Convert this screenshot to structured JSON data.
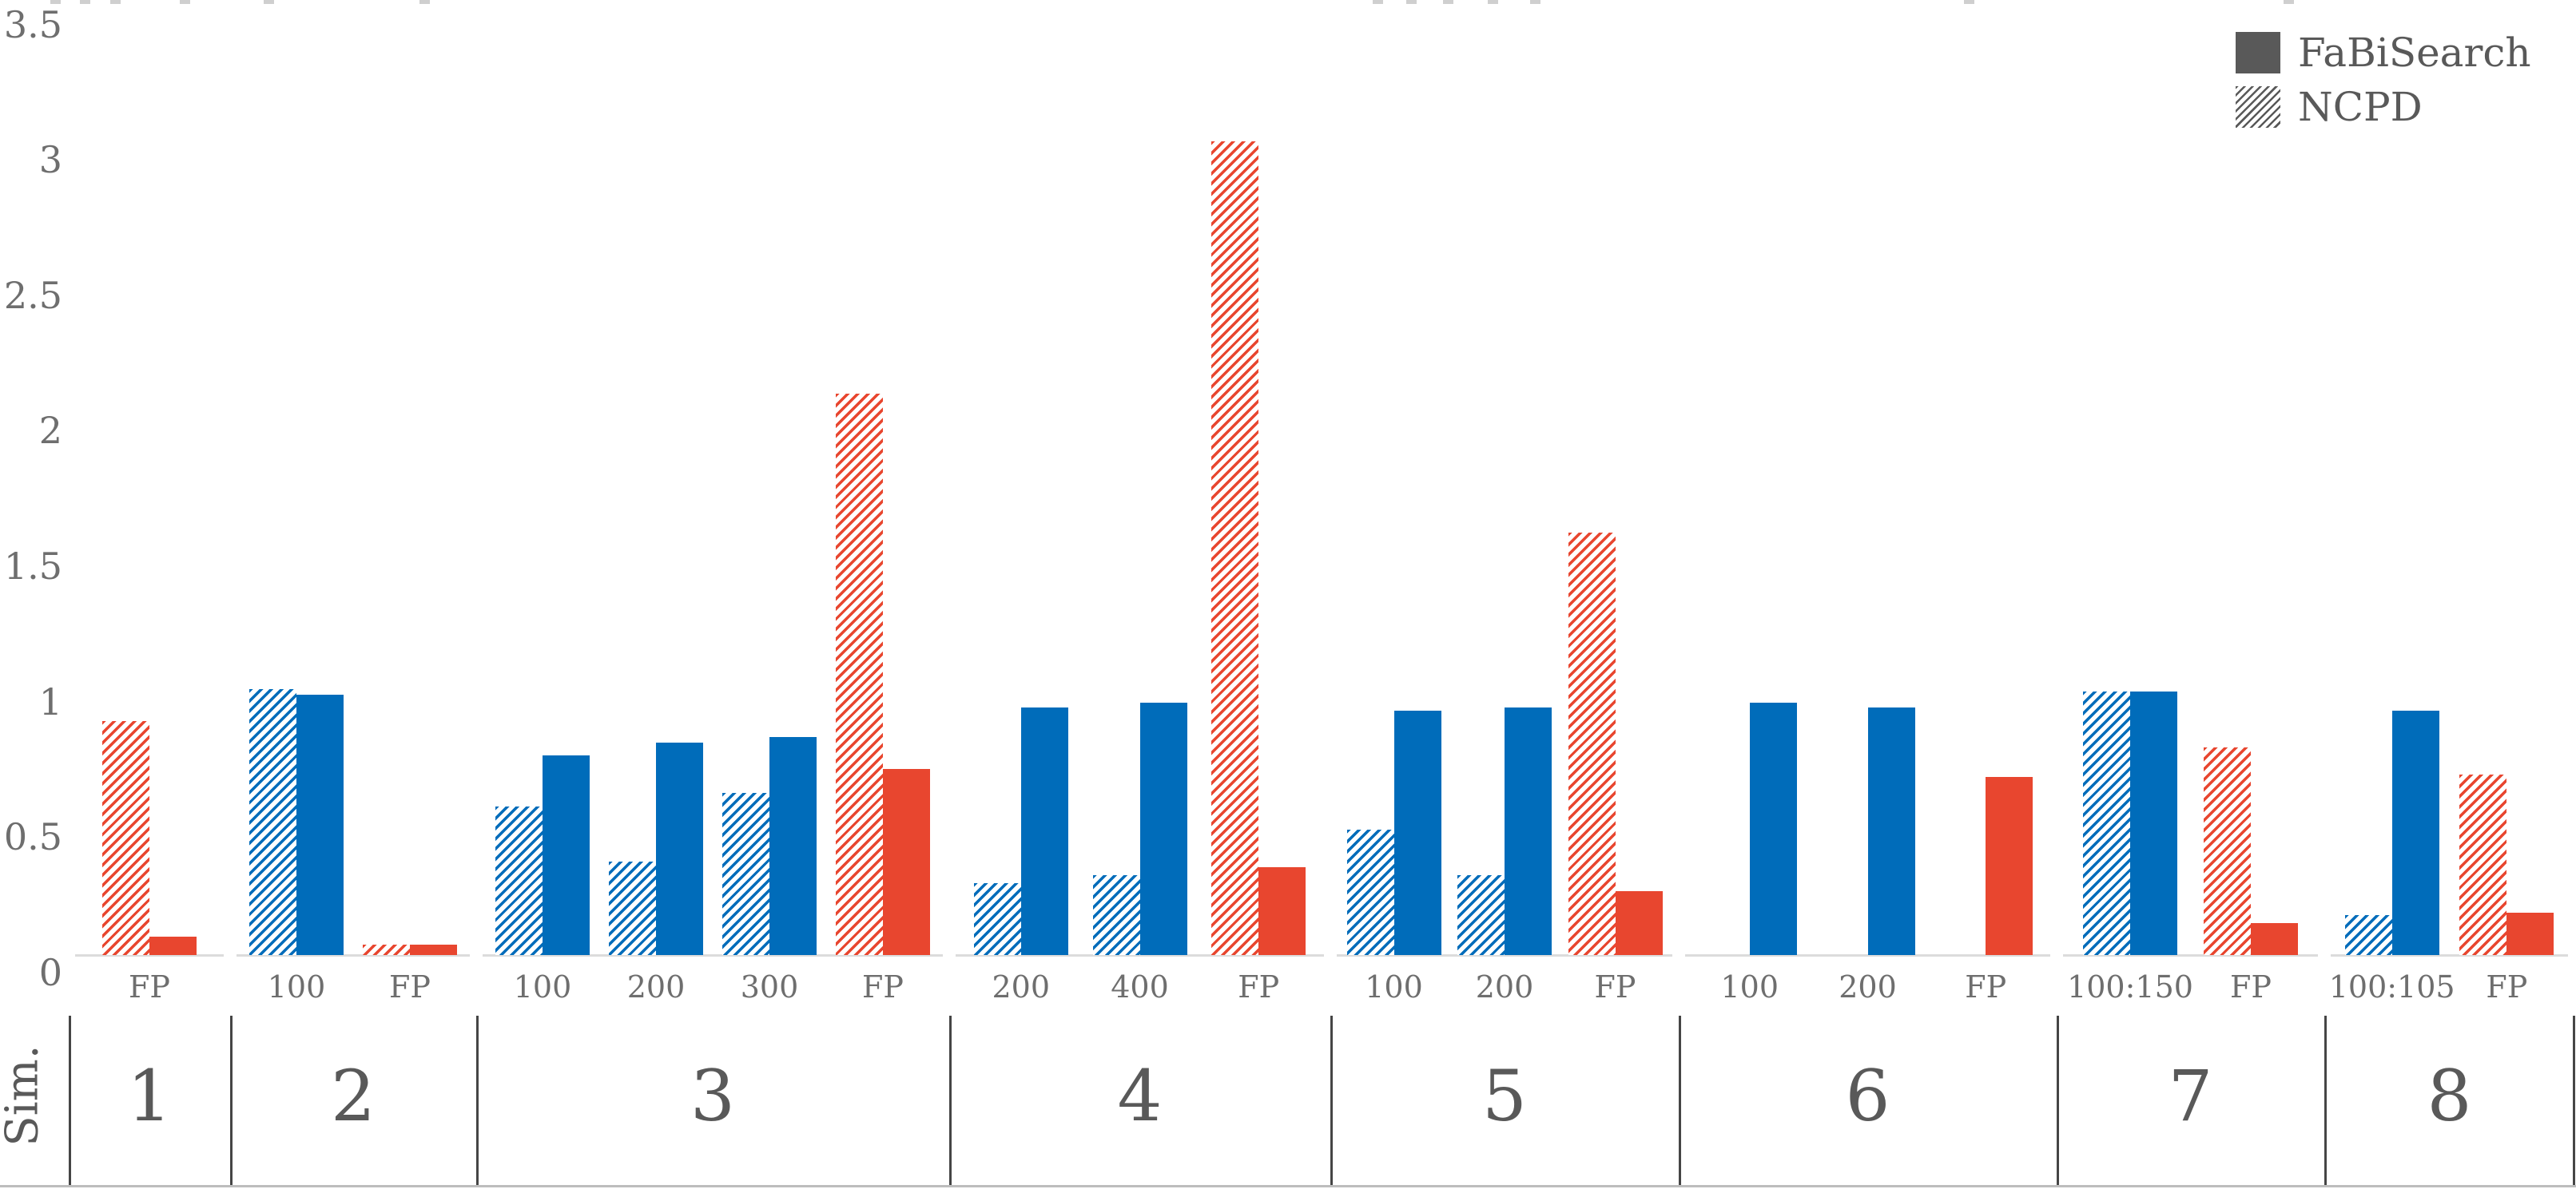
{
  "legend": {
    "items": [
      {
        "label": "FaBiSearch",
        "swatch": "solid-square-icon"
      },
      {
        "label": "NCPD",
        "swatch": "hatched-square-icon"
      }
    ]
  },
  "y_axis": {
    "label": "Sim.",
    "tick_labels": [
      "3.5",
      "3",
      "2.5",
      "2",
      "1.5",
      "1",
      "0.5",
      "0"
    ]
  },
  "colors": {
    "fabisearch_blue": "#006cba",
    "fabisearch_red": "#e8462f",
    "legend_gray": "#595959",
    "axis_text_gray": "#6e6e6e"
  },
  "chart_data": {
    "type": "bar",
    "title": "",
    "ylabel": "Sim.",
    "ylim": [
      0,
      3.5
    ],
    "grid": false,
    "legend_position": "top-right",
    "series_names": [
      "FaBiSearch (solid fill)",
      "NCPD (hatched fill)"
    ],
    "note": "Eight simulation panels; within each pair the left hatched bar is NCPD, the right solid bar is FaBiSearch. Blue pairs are similarity at change points, red pairs are FP (false positives).",
    "groups": [
      {
        "id": "1",
        "pairs": [
          {
            "label": "FP",
            "color": "red",
            "ncpd": 0.88,
            "fabisearch": 0.07
          }
        ]
      },
      {
        "id": "2",
        "pairs": [
          {
            "label": "100",
            "color": "blue",
            "ncpd": 1.0,
            "fabisearch": 0.98
          },
          {
            "label": "FP",
            "color": "red",
            "ncpd": 0.04,
            "fabisearch": 0.04
          }
        ]
      },
      {
        "id": "3",
        "pairs": [
          {
            "label": "100",
            "color": "blue",
            "ncpd": 0.56,
            "fabisearch": 0.75
          },
          {
            "label": "200",
            "color": "blue",
            "ncpd": 0.35,
            "fabisearch": 0.8
          },
          {
            "label": "300",
            "color": "blue",
            "ncpd": 0.61,
            "fabisearch": 0.82
          },
          {
            "label": "FP",
            "color": "red",
            "ncpd": 2.11,
            "fabisearch": 0.7
          }
        ]
      },
      {
        "id": "4",
        "pairs": [
          {
            "label": "200",
            "color": "blue",
            "ncpd": 0.27,
            "fabisearch": 0.93
          },
          {
            "label": "400",
            "color": "blue",
            "ncpd": 0.3,
            "fabisearch": 0.95
          },
          {
            "label": "FP",
            "color": "red",
            "ncpd": 3.06,
            "fabisearch": 0.33
          }
        ]
      },
      {
        "id": "5",
        "pairs": [
          {
            "label": "100",
            "color": "blue",
            "ncpd": 0.47,
            "fabisearch": 0.92
          },
          {
            "label": "200",
            "color": "blue",
            "ncpd": 0.3,
            "fabisearch": 0.93
          },
          {
            "label": "FP",
            "color": "red",
            "ncpd": 1.59,
            "fabisearch": 0.24
          }
        ]
      },
      {
        "id": "6",
        "pairs": [
          {
            "label": "100",
            "color": "blue",
            "ncpd": 0,
            "fabisearch": 0.95
          },
          {
            "label": "200",
            "color": "blue",
            "ncpd": 0,
            "fabisearch": 0.93
          },
          {
            "label": "FP",
            "color": "red",
            "ncpd": 0,
            "fabisearch": 0.67
          }
        ]
      },
      {
        "id": "7",
        "pairs": [
          {
            "label": "100:150",
            "color": "blue",
            "ncpd": 0.99,
            "fabisearch": 0.99
          },
          {
            "label": "FP",
            "color": "red",
            "ncpd": 0.78,
            "fabisearch": 0.12
          }
        ]
      },
      {
        "id": "8",
        "pairs": [
          {
            "label": "100:105",
            "color": "blue",
            "ncpd": 0.15,
            "fabisearch": 0.92
          },
          {
            "label": "FP",
            "color": "red",
            "ncpd": 0.68,
            "fabisearch": 0.16
          }
        ]
      }
    ]
  }
}
